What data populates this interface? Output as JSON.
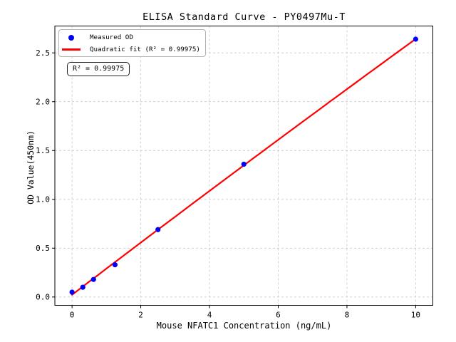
{
  "chart_data": {
    "type": "scatter",
    "title": "ELISA Standard Curve - PY0497Mu-T",
    "xlabel": "Mouse NFATC1 Concentration (ng/mL)",
    "ylabel": "OD Value(450nm)",
    "xlim": [
      -0.5,
      10.5
    ],
    "ylim": [
      -0.085,
      2.775
    ],
    "xticks": [
      0,
      2,
      4,
      6,
      8,
      10
    ],
    "xticklabels": [
      "0",
      "2",
      "4",
      "6",
      "8",
      "10"
    ],
    "yticks": [
      0.0,
      0.5,
      1.0,
      1.5,
      2.0,
      2.5
    ],
    "yticklabels": [
      "0.0",
      "0.5",
      "1.0",
      "1.5",
      "2.0",
      "2.5"
    ],
    "grid": true,
    "grid_color": "#cccccc",
    "legend": {
      "position": "upper left",
      "entries": [
        {
          "label": "Measured OD",
          "marker": "dot",
          "color": "#0000ff"
        },
        {
          "label": "Quadratic fit (R² = 0.99975)",
          "marker": "line",
          "color": "#ff0000"
        }
      ]
    },
    "annotation": {
      "text": "R² = 0.99975"
    },
    "series": [
      {
        "name": "Measured OD",
        "type": "scatter",
        "color": "#0000ff",
        "x": [
          0,
          0.313,
          0.625,
          1.25,
          2.5,
          5,
          10
        ],
        "y": [
          0.05,
          0.1,
          0.18,
          0.33,
          0.69,
          1.36,
          2.64
        ]
      },
      {
        "name": "Quadratic fit (R² = 0.99975)",
        "type": "line",
        "color": "#ff0000",
        "x_start": 0,
        "x_end": 10,
        "fit_coefficients": {
          "intercept": 0.0231,
          "linear": 0.2683,
          "quadratic": -0.00064
        },
        "r_squared": 0.99975
      }
    ]
  }
}
